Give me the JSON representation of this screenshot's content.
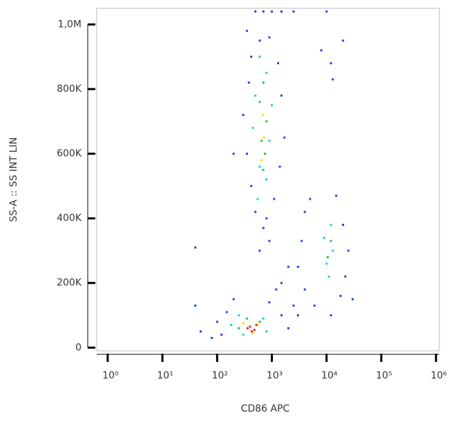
{
  "chart_data": {
    "type": "scatter",
    "x_label": "CD86 APC",
    "y_label": "SS-A :: SS INT LIN",
    "xscale": "log",
    "xlim": [
      0.63,
      1150000
    ],
    "ylim": [
      -10000,
      1050000
    ],
    "xticks": [
      {
        "value": 1,
        "label": "10⁰"
      },
      {
        "value": 10,
        "label": "10¹"
      },
      {
        "value": 100,
        "label": "10²"
      },
      {
        "value": 1000,
        "label": "10³"
      },
      {
        "value": 10000,
        "label": "10⁴"
      },
      {
        "value": 100000,
        "label": "10⁵"
      },
      {
        "value": 1000000,
        "label": "10⁶"
      }
    ],
    "yticks": [
      0,
      {
        "value": 200000,
        "label": "200K"
      },
      {
        "value": 400000,
        "label": "400K"
      },
      {
        "value": 600000,
        "label": "600K"
      },
      {
        "value": 800000,
        "label": "800K"
      },
      {
        "value": 1000000,
        "label": "1,0M"
      }
    ],
    "series": [
      {
        "color": "#1f3fff",
        "x": [
          500,
          700,
          1000,
          1500,
          2500,
          350,
          600,
          900,
          420,
          1300,
          380,
          1500,
          300,
          1700,
          350,
          1400,
          420,
          1100,
          500,
          800,
          700,
          900,
          600,
          4000,
          5000,
          15000,
          20000,
          3500,
          25000,
          3000,
          22000,
          4000,
          18000,
          30000,
          6000,
          12000,
          50,
          80,
          100,
          150,
          120,
          1500,
          2000,
          2500,
          1200,
          2000,
          1500,
          3000,
          40,
          200,
          900,
          10000,
          8000,
          12000,
          13000,
          20000,
          200,
          40
        ],
        "y": [
          1040000,
          1040000,
          1040000,
          1040000,
          1040000,
          980000,
          950000,
          960000,
          900000,
          880000,
          820000,
          780000,
          720000,
          650000,
          600000,
          560000,
          500000,
          460000,
          420000,
          400000,
          370000,
          330000,
          300000,
          420000,
          460000,
          470000,
          380000,
          330000,
          300000,
          250000,
          220000,
          180000,
          160000,
          150000,
          130000,
          100000,
          50000,
          30000,
          80000,
          110000,
          40000,
          100000,
          60000,
          130000,
          180000,
          250000,
          200000,
          100000,
          130000,
          150000,
          140000,
          1040000,
          920000,
          880000,
          830000,
          950000,
          600000,
          310000
        ]
      },
      {
        "color": "#19d3d3",
        "x": [
          600,
          800,
          500,
          1000,
          450,
          900,
          600,
          800,
          550,
          12000,
          9000,
          13000,
          10000,
          11000,
          250,
          700,
          300,
          800,
          180
        ],
        "y": [
          900000,
          850000,
          780000,
          750000,
          680000,
          640000,
          560000,
          520000,
          460000,
          380000,
          340000,
          300000,
          260000,
          220000,
          100000,
          90000,
          40000,
          50000,
          70000
        ]
      },
      {
        "color": "#22c43a",
        "x": [
          700,
          600,
          800,
          650,
          750,
          700,
          12000,
          10500,
          350,
          600,
          250
        ],
        "y": [
          820000,
          760000,
          700000,
          640000,
          600000,
          550000,
          330000,
          280000,
          90000,
          80000,
          60000
        ]
      },
      {
        "color": "#f2e600",
        "x": [
          680,
          720,
          650,
          300,
          550,
          450
        ],
        "y": [
          720000,
          650000,
          580000,
          75000,
          70000,
          45000
        ]
      },
      {
        "color": "#e8281a",
        "x": [
          400,
          480,
          520,
          430,
          360
        ],
        "y": [
          65000,
          55000,
          70000,
          50000,
          60000
        ]
      }
    ]
  }
}
